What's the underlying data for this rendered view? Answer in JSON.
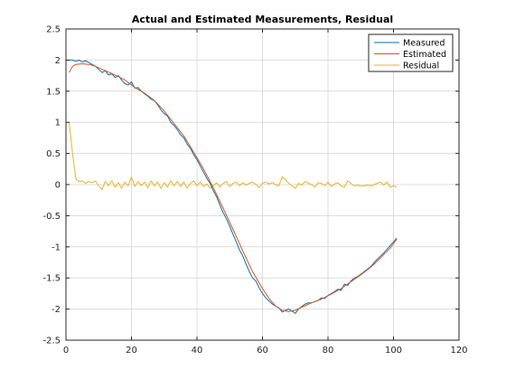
{
  "chart_data": {
    "type": "line",
    "title": "Actual and Estimated Measurements, Residual",
    "xlabel": "",
    "ylabel": "",
    "xlim": [
      0,
      120
    ],
    "ylim": [
      -2.5,
      2.5
    ],
    "xticks": [
      0,
      20,
      40,
      60,
      80,
      100,
      120
    ],
    "yticks": [
      2.5,
      2,
      1.5,
      1,
      0.5,
      0,
      -0.5,
      -1,
      -1.5,
      -2,
      -2.5
    ],
    "xtick_labels": [
      "0",
      "20",
      "40",
      "60",
      "80",
      "100",
      "120"
    ],
    "ytick_labels": [
      "2.5",
      "2",
      "1.5",
      "1",
      "0.5",
      "0",
      "-0.5",
      "-1",
      "-1.5",
      "-2",
      "-2.5"
    ],
    "grid": true,
    "legend_position": "top-right",
    "series": [
      {
        "name": "Measured",
        "color": "#0072BD",
        "x": [
          1,
          2,
          3,
          4,
          5,
          6,
          7,
          8,
          9,
          10,
          11,
          12,
          13,
          14,
          15,
          16,
          17,
          18,
          19,
          20,
          21,
          22,
          23,
          24,
          25,
          26,
          27,
          28,
          29,
          30,
          31,
          32,
          33,
          34,
          35,
          36,
          37,
          38,
          39,
          40,
          41,
          42,
          43,
          44,
          45,
          46,
          47,
          48,
          49,
          50,
          51,
          52,
          53,
          54,
          55,
          56,
          57,
          58,
          59,
          60,
          61,
          62,
          63,
          64,
          65,
          66,
          67,
          68,
          69,
          70,
          71,
          72,
          73,
          74,
          75,
          76,
          77,
          78,
          79,
          80,
          81,
          82,
          83,
          84,
          85,
          86,
          87,
          88,
          89,
          90,
          91,
          92,
          93,
          94,
          95,
          96,
          97,
          98,
          99,
          100,
          101
        ],
        "y": [
          2.0,
          2.0,
          1.98,
          2.0,
          1.97,
          1.99,
          1.96,
          1.93,
          1.9,
          1.85,
          1.8,
          1.83,
          1.76,
          1.78,
          1.72,
          1.75,
          1.68,
          1.62,
          1.6,
          1.65,
          1.55,
          1.56,
          1.5,
          1.46,
          1.42,
          1.37,
          1.35,
          1.28,
          1.2,
          1.14,
          1.1,
          1.0,
          0.95,
          0.88,
          0.8,
          0.75,
          0.65,
          0.58,
          0.48,
          0.4,
          0.3,
          0.2,
          0.1,
          0.02,
          -0.1,
          -0.2,
          -0.33,
          -0.45,
          -0.55,
          -0.67,
          -0.8,
          -0.92,
          -1.05,
          -1.15,
          -1.28,
          -1.4,
          -1.5,
          -1.55,
          -1.66,
          -1.75,
          -1.82,
          -1.87,
          -1.92,
          -1.95,
          -1.98,
          -2.05,
          -2.02,
          -2.0,
          -2.03,
          -2.07,
          -2.0,
          -1.96,
          -1.92,
          -1.9,
          -1.9,
          -1.88,
          -1.86,
          -1.82,
          -1.83,
          -1.78,
          -1.75,
          -1.72,
          -1.68,
          -1.7,
          -1.6,
          -1.62,
          -1.55,
          -1.5,
          -1.48,
          -1.44,
          -1.4,
          -1.36,
          -1.32,
          -1.26,
          -1.2,
          -1.15,
          -1.1,
          -1.04,
          -0.98,
          -0.92,
          -0.86
        ]
      },
      {
        "name": "Estimated",
        "color": "#D95319",
        "x": [
          1,
          2,
          3,
          5,
          7,
          9,
          12,
          15,
          18,
          21,
          24,
          27,
          30,
          33,
          36,
          39,
          42,
          45,
          48,
          51,
          54,
          57,
          60,
          62,
          64,
          66,
          68,
          70,
          72,
          75,
          78,
          81,
          84,
          87,
          90,
          93,
          96,
          99,
          101
        ],
        "y": [
          1.8,
          1.9,
          1.93,
          1.94,
          1.93,
          1.9,
          1.83,
          1.76,
          1.68,
          1.56,
          1.47,
          1.35,
          1.18,
          0.98,
          0.78,
          0.52,
          0.25,
          -0.05,
          -0.38,
          -0.72,
          -1.07,
          -1.4,
          -1.67,
          -1.83,
          -1.95,
          -2.02,
          -2.04,
          -2.02,
          -1.97,
          -1.9,
          -1.84,
          -1.76,
          -1.67,
          -1.56,
          -1.45,
          -1.33,
          -1.18,
          -1.02,
          -0.88
        ]
      },
      {
        "name": "Residual",
        "color": "#EDB120",
        "x": [
          1,
          2,
          3,
          4,
          5,
          6,
          7,
          8,
          9,
          10,
          11,
          12,
          13,
          14,
          15,
          16,
          17,
          18,
          19,
          20,
          21,
          22,
          23,
          24,
          25,
          26,
          27,
          28,
          29,
          30,
          31,
          32,
          33,
          34,
          35,
          36,
          37,
          38,
          39,
          40,
          41,
          42,
          43,
          44,
          45,
          46,
          47,
          48,
          49,
          50,
          51,
          52,
          53,
          54,
          55,
          56,
          57,
          58,
          59,
          60,
          61,
          62,
          63,
          64,
          65,
          66,
          67,
          68,
          69,
          70,
          71,
          72,
          73,
          74,
          75,
          76,
          77,
          78,
          79,
          80,
          81,
          82,
          83,
          84,
          85,
          86,
          87,
          88,
          89,
          90,
          91,
          92,
          93,
          94,
          95,
          96,
          97,
          98,
          99,
          100,
          101
        ],
        "y": [
          1.0,
          0.5,
          0.1,
          0.05,
          0.06,
          0.02,
          0.05,
          0.03,
          0.06,
          -0.02,
          -0.08,
          0.05,
          -0.02,
          0.06,
          -0.04,
          0.03,
          -0.06,
          0.04,
          -0.02,
          0.12,
          -0.03,
          0.05,
          -0.02,
          0.04,
          -0.05,
          0.06,
          -0.02,
          0.04,
          -0.06,
          0.03,
          -0.04,
          0.06,
          -0.02,
          0.05,
          -0.03,
          0.04,
          -0.06,
          0.02,
          0.06,
          -0.02,
          0.04,
          -0.03,
          0.01,
          -0.06,
          -0.02,
          0.03,
          -0.04,
          0.02,
          0.05,
          -0.03,
          0.02,
          0.04,
          -0.02,
          0.03,
          -0.01,
          0.02,
          0.04,
          0.0,
          -0.05,
          0.02,
          0.04,
          0.01,
          0.03,
          0.0,
          -0.02,
          0.12,
          0.08,
          0.02,
          -0.02,
          -0.06,
          0.02,
          -0.01,
          0.05,
          0.02,
          0.0,
          -0.04,
          0.03,
          0.02,
          -0.02,
          0.04,
          -0.03,
          0.01,
          0.03,
          -0.02,
          -0.04,
          0.06,
          0.02,
          -0.02,
          -0.01,
          -0.02,
          -0.02,
          -0.01,
          -0.02,
          0.0,
          0.02,
          0.04,
          -0.01,
          0.04,
          -0.04,
          -0.02,
          -0.04
        ]
      }
    ]
  }
}
